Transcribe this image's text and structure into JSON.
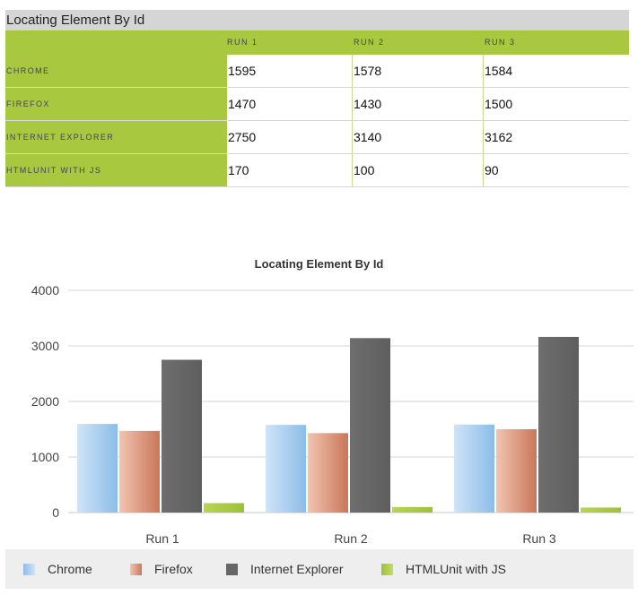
{
  "table": {
    "title": "Locating Element By Id",
    "columns": [
      "",
      "RUN 1",
      "RUN 2",
      "RUN 3"
    ],
    "rows": [
      {
        "label": "CHROME",
        "values": [
          "1595",
          "1578",
          "1584"
        ]
      },
      {
        "label": "FIREFOX",
        "values": [
          "1470",
          "1430",
          "1500"
        ]
      },
      {
        "label": "INTERNET EXPLORER",
        "values": [
          "2750",
          "3140",
          "3162"
        ]
      },
      {
        "label": "HTMLUNIT WITH JS",
        "values": [
          "170",
          "100",
          "90"
        ]
      }
    ]
  },
  "chart_data": {
    "type": "bar",
    "title": "Locating Element By Id",
    "categories": [
      "Run 1",
      "Run 2",
      "Run 3"
    ],
    "series": [
      {
        "name": "Chrome",
        "values": [
          1595,
          1578,
          1584
        ],
        "color_light": "#cfe4f7",
        "color_dark": "#8cbde8"
      },
      {
        "name": "Firefox",
        "values": [
          1470,
          1430,
          1500
        ],
        "color_light": "#f2c4b0",
        "color_dark": "#c9775a"
      },
      {
        "name": "Internet Explorer",
        "values": [
          2750,
          3140,
          3162
        ],
        "color_light": "#6e6e6e",
        "color_dark": "#5e5e5e"
      },
      {
        "name": "HTMLUnit with JS",
        "values": [
          170,
          100,
          90
        ],
        "color_light": "#b8d455",
        "color_dark": "#9fc03a"
      }
    ],
    "yticks": [
      0,
      1000,
      2000,
      3000,
      4000
    ],
    "ylim": [
      0,
      4000
    ],
    "grid": true,
    "legend_position": "bottom"
  }
}
